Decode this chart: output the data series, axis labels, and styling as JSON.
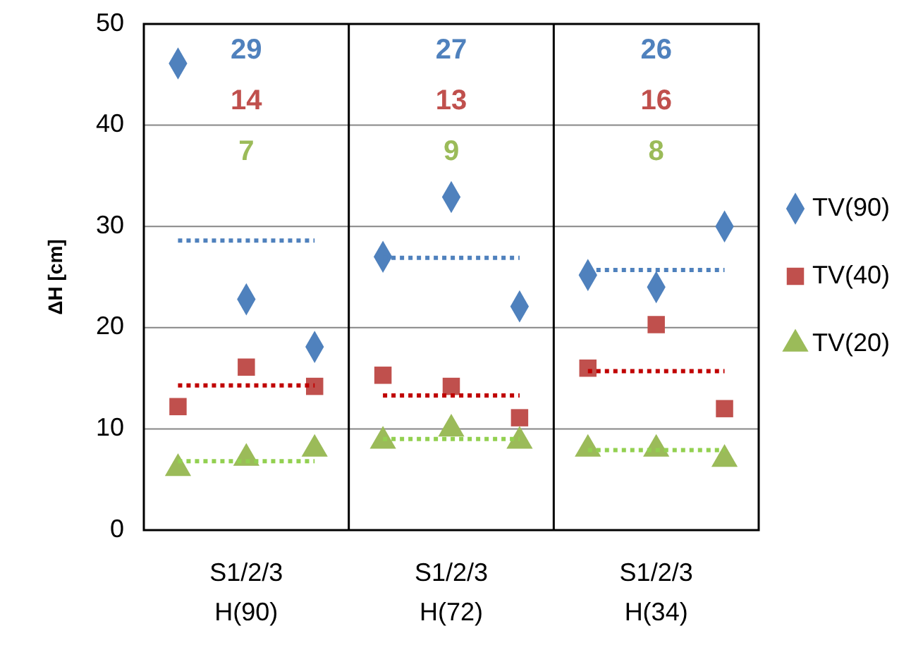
{
  "chart_data": {
    "type": "scatter",
    "ylabel": "ΔH [cm]",
    "categories": [
      null,
      "S1/2/3\nH(90)",
      null,
      null,
      "S1/2/3\nH(72)",
      null,
      null,
      "S1/2/3\nH(34)",
      null
    ],
    "ylim": [
      0,
      50
    ],
    "yticks": [
      0,
      10,
      20,
      30,
      40,
      50
    ],
    "grid": "y",
    "legend": "right",
    "series": [
      {
        "name": "TV(90)",
        "color": "#4f81bd",
        "marker": "diamond",
        "values": [
          46.1,
          22.8,
          18.1,
          27.0,
          32.9,
          22.1,
          25.2,
          24.0,
          30.0
        ]
      },
      {
        "name": "TV(40)",
        "color": "#c0504d",
        "marker": "square",
        "values": [
          12.2,
          16.1,
          14.2,
          15.3,
          14.2,
          11.1,
          16.0,
          20.3,
          12.0
        ]
      },
      {
        "name": "TV(20)",
        "color": "#9bbb59",
        "marker": "triangle",
        "values": [
          6.1,
          7.1,
          8.0,
          8.8,
          10.0,
          8.8,
          8.0,
          8.0,
          7.0
        ]
      },
      {
        "type": "line",
        "color": "#4f81bd",
        "line_style": "dotted",
        "marker": "none",
        "values": [
          28.6,
          28.6,
          28.6,
          26.9,
          26.9,
          26.9,
          25.7,
          25.7,
          25.7
        ]
      },
      {
        "type": "line",
        "color": "#c00000",
        "line_style": "dotted",
        "marker": "none",
        "values": [
          14.3,
          14.3,
          14.3,
          13.3,
          13.3,
          13.3,
          15.7,
          15.7,
          15.7
        ]
      },
      {
        "type": "line",
        "color": "#92d050",
        "line_style": "dotted",
        "marker": "none",
        "values": [
          6.8,
          6.8,
          6.8,
          9.0,
          9.0,
          9.0,
          7.9,
          7.9,
          7.9
        ]
      }
    ],
    "annotations": [
      "29",
      "14",
      "7",
      "27",
      "13",
      "9",
      "26",
      "16",
      "8"
    ]
  }
}
